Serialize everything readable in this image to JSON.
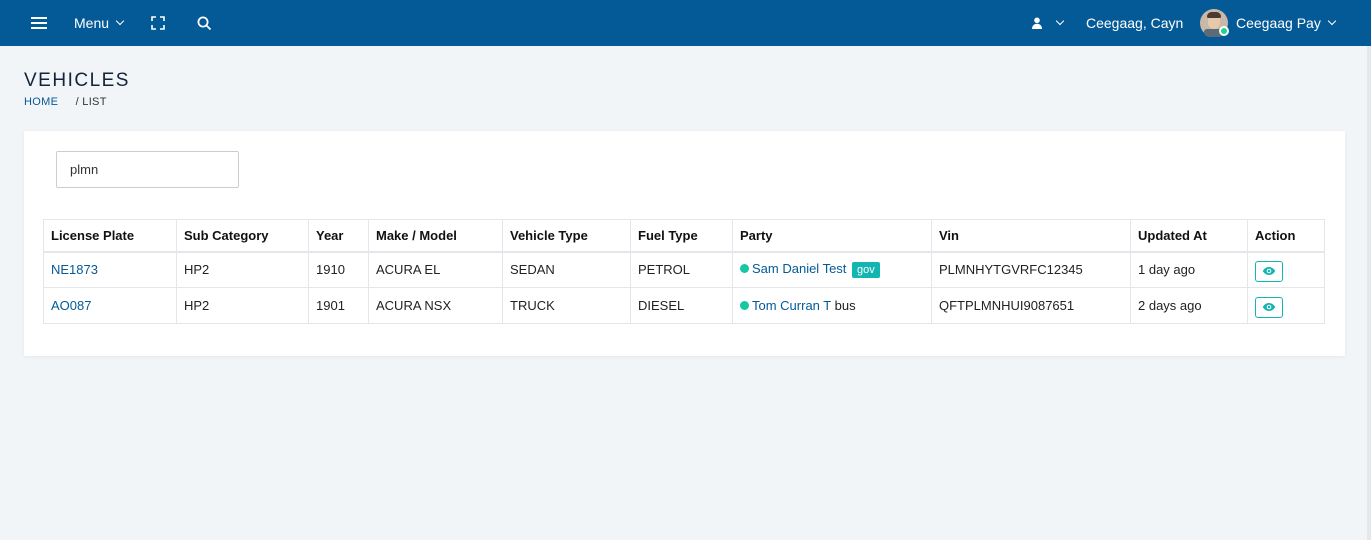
{
  "topbar": {
    "menu_label": "Menu",
    "user_name": "Ceegaag, Cayn",
    "org_name": "Ceegaag Pay",
    "icons": [
      "hamburger-icon",
      "chevron-down-icon",
      "expand-icon",
      "search-icon",
      "user-icon",
      "avatar"
    ]
  },
  "page": {
    "title": "VEHICLES",
    "breadcrumb": {
      "home": "HOME",
      "separator": "/",
      "current": "LIST"
    }
  },
  "search": {
    "value": "plmn"
  },
  "table": {
    "headers": [
      "License Plate",
      "Sub Category",
      "Year",
      "Make / Model",
      "Vehicle Type",
      "Fuel Type",
      "Party",
      "Vin",
      "Updated At",
      "Action"
    ],
    "rows": [
      {
        "plate": "NE1873",
        "sub": "HP2",
        "year": "1910",
        "model": "ACURA EL",
        "vtype": "SEDAN",
        "fuel": "PETROL",
        "party": "Sam Daniel Test",
        "party_tag": "gov",
        "vin": "PLMNHYTGVRFC12345",
        "updated": "1 day ago"
      },
      {
        "plate": "AO087",
        "sub": "HP2",
        "year": "1901",
        "model": "ACURA NSX",
        "vtype": "TRUCK",
        "fuel": "DIESEL",
        "party": "Tom Curran T",
        "party_suffix": "bus",
        "vin": "QFTPLMNHUI9087651",
        "updated": "2 days ago"
      }
    ]
  },
  "colors": {
    "topbar": "#035a96",
    "accent": "#13b5b1",
    "status_dot": "#17c6a3",
    "link": "#035a96"
  }
}
